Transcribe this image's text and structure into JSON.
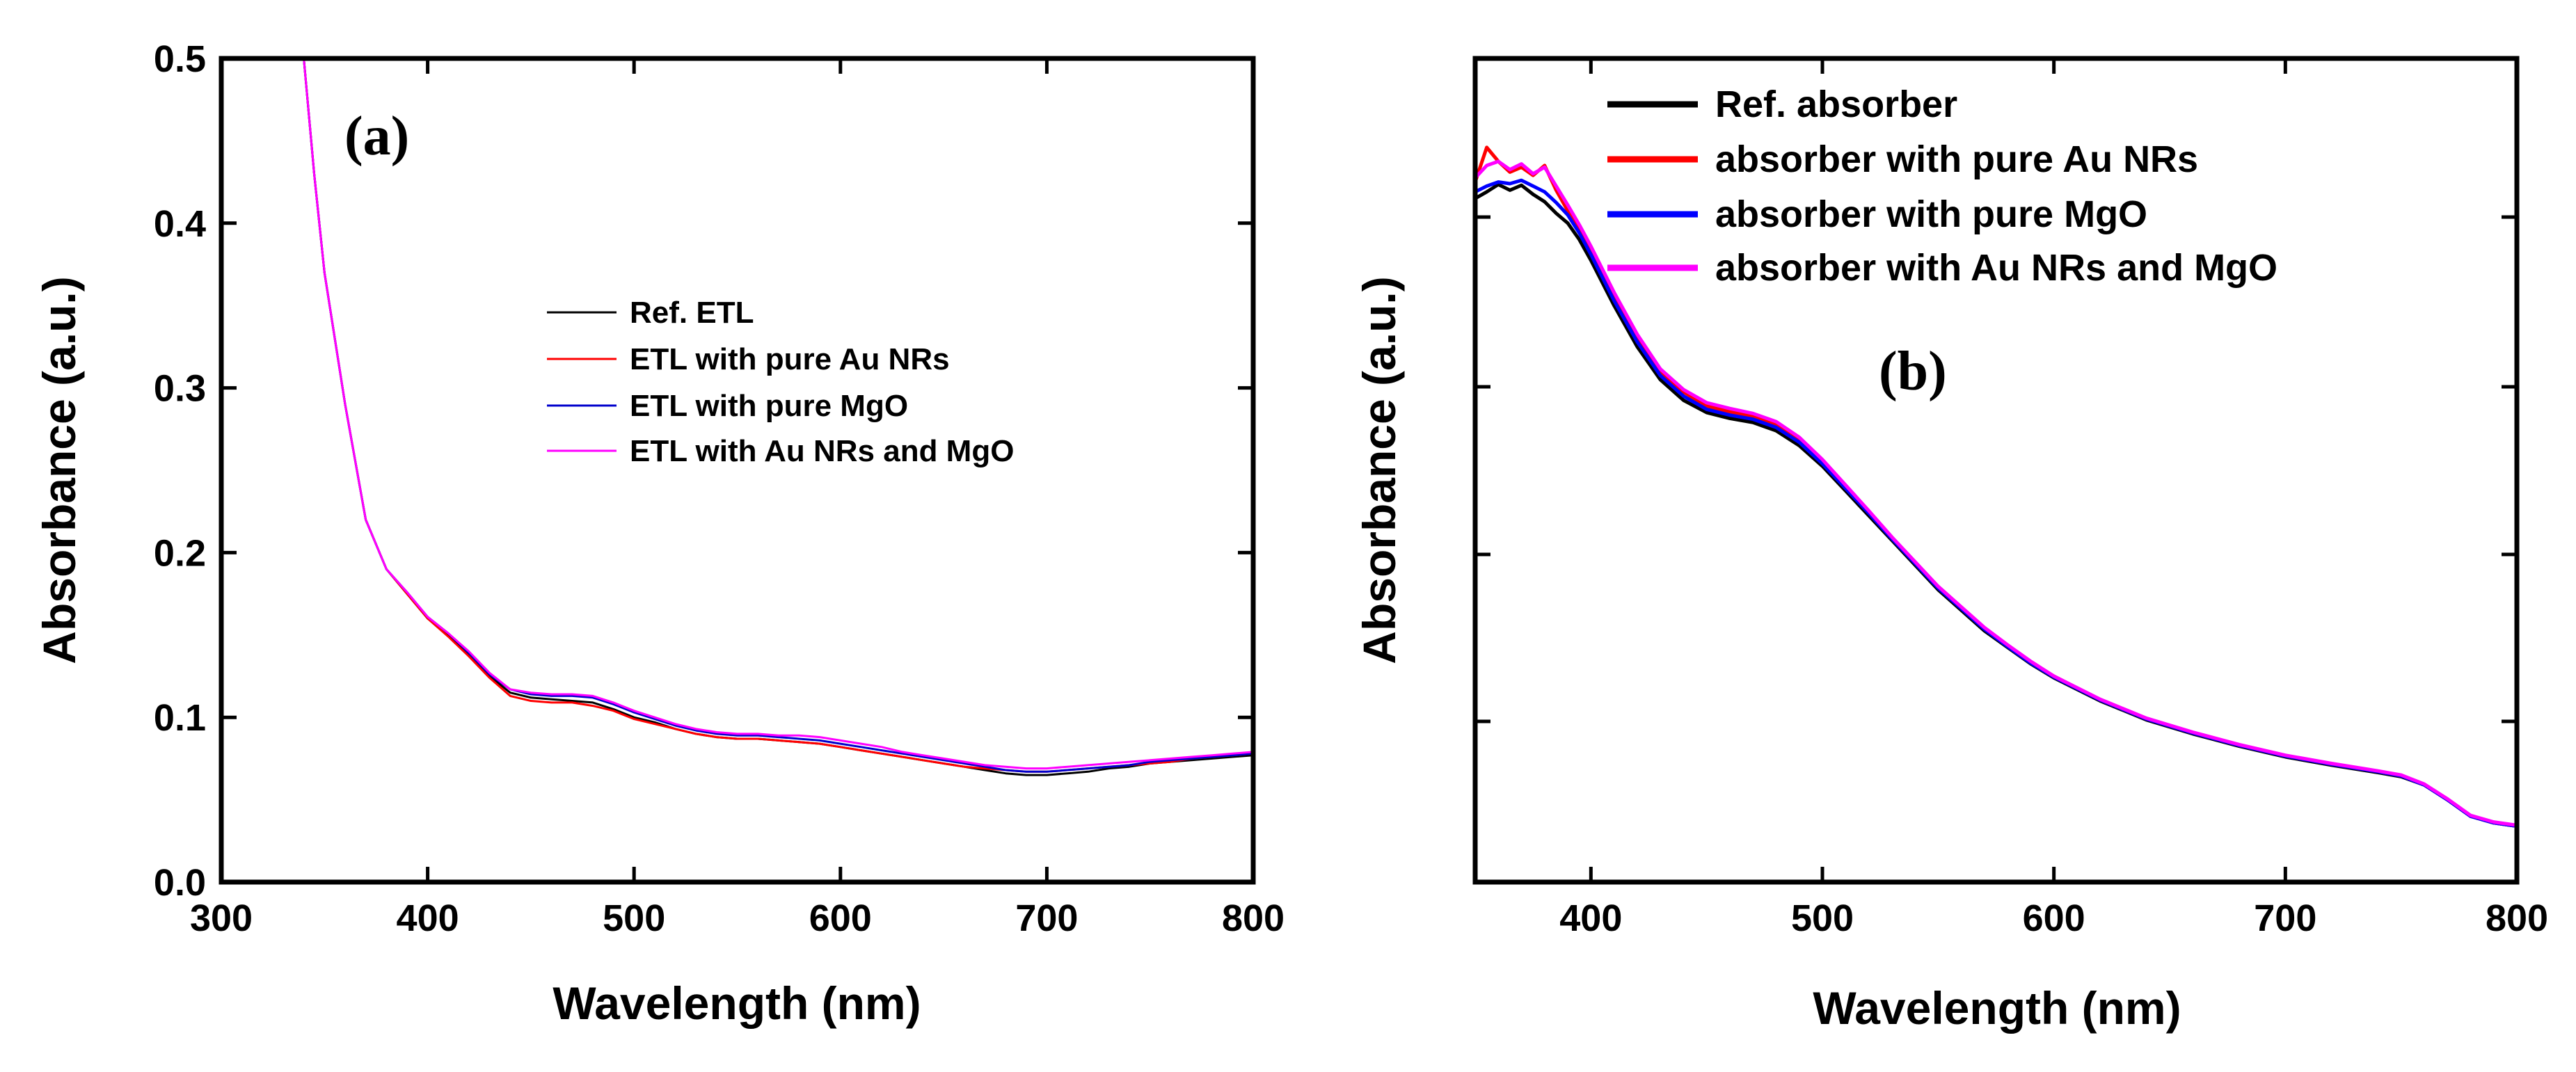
{
  "chart_data": [
    {
      "panel": "(a)",
      "type": "line",
      "xlabel": "Wavelength (nm)",
      "ylabel": "Absorbance (a.u.)",
      "xlim": [
        300,
        800
      ],
      "ylim": [
        0.0,
        0.5
      ],
      "xticks": [
        "300",
        "400",
        "500",
        "600",
        "700",
        "800"
      ],
      "yticks": [
        "0.0",
        "0.1",
        "0.2",
        "0.3",
        "0.4",
        "0.5"
      ],
      "legend": "center-right",
      "x": [
        340,
        345,
        350,
        360,
        370,
        380,
        390,
        400,
        410,
        420,
        430,
        440,
        450,
        460,
        470,
        480,
        490,
        500,
        510,
        520,
        530,
        540,
        550,
        560,
        570,
        580,
        590,
        600,
        610,
        620,
        630,
        640,
        650,
        660,
        670,
        680,
        690,
        700,
        710,
        720,
        730,
        740,
        750,
        760,
        770,
        780,
        790,
        800
      ],
      "series": [
        {
          "name": "Ref. ETL",
          "color": "#000000",
          "values": [
            0.5,
            0.43,
            0.37,
            0.29,
            0.22,
            0.19,
            0.175,
            0.16,
            0.15,
            0.138,
            0.125,
            0.115,
            0.112,
            0.111,
            0.11,
            0.109,
            0.105,
            0.1,
            0.097,
            0.093,
            0.09,
            0.088,
            0.087,
            0.087,
            0.086,
            0.085,
            0.084,
            0.082,
            0.08,
            0.078,
            0.076,
            0.074,
            0.072,
            0.07,
            0.068,
            0.066,
            0.065,
            0.065,
            0.066,
            0.067,
            0.069,
            0.07,
            0.072,
            0.073,
            0.074,
            0.075,
            0.076,
            0.077
          ]
        },
        {
          "name": "ETL with pure Au NRs",
          "color": "#ff0000",
          "values": [
            0.5,
            0.43,
            0.37,
            0.29,
            0.22,
            0.19,
            0.175,
            0.16,
            0.149,
            0.137,
            0.124,
            0.113,
            0.11,
            0.109,
            0.109,
            0.107,
            0.104,
            0.099,
            0.096,
            0.093,
            0.09,
            0.088,
            0.087,
            0.087,
            0.086,
            0.085,
            0.084,
            0.082,
            0.08,
            0.078,
            0.076,
            0.074,
            0.072,
            0.07,
            0.069,
            0.068,
            0.067,
            0.067,
            0.068,
            0.069,
            0.07,
            0.071,
            0.072,
            0.073,
            0.075,
            0.076,
            0.077,
            0.078
          ]
        },
        {
          "name": "ETL with pure MgO",
          "color": "#0000cc",
          "values": [
            0.5,
            0.43,
            0.37,
            0.29,
            0.22,
            0.19,
            0.176,
            0.161,
            0.151,
            0.139,
            0.126,
            0.117,
            0.114,
            0.113,
            0.113,
            0.112,
            0.108,
            0.103,
            0.099,
            0.095,
            0.092,
            0.09,
            0.089,
            0.089,
            0.088,
            0.087,
            0.086,
            0.084,
            0.082,
            0.08,
            0.078,
            0.076,
            0.074,
            0.072,
            0.07,
            0.068,
            0.067,
            0.067,
            0.068,
            0.069,
            0.07,
            0.071,
            0.073,
            0.074,
            0.075,
            0.076,
            0.077,
            0.078
          ]
        },
        {
          "name": "ETL with Au NRs and MgO",
          "color": "#ff00ff",
          "values": [
            0.5,
            0.43,
            0.37,
            0.29,
            0.22,
            0.19,
            0.176,
            0.161,
            0.151,
            0.14,
            0.127,
            0.117,
            0.115,
            0.114,
            0.114,
            0.113,
            0.109,
            0.104,
            0.1,
            0.096,
            0.093,
            0.091,
            0.09,
            0.09,
            0.089,
            0.089,
            0.088,
            0.086,
            0.084,
            0.082,
            0.079,
            0.077,
            0.075,
            0.073,
            0.071,
            0.07,
            0.069,
            0.069,
            0.07,
            0.071,
            0.072,
            0.073,
            0.074,
            0.075,
            0.076,
            0.077,
            0.078,
            0.079
          ]
        }
      ]
    },
    {
      "panel": "(b)",
      "type": "line",
      "xlabel": "Wavelength (nm)",
      "ylabel": "Absorbance (a.u.)",
      "xlim": [
        350,
        800
      ],
      "ylim": [
        0.0,
        1.0
      ],
      "xticks": [
        "400",
        "500",
        "600",
        "700",
        "800"
      ],
      "yticks": [],
      "legend": "top-right",
      "x": [
        350,
        355,
        360,
        365,
        370,
        375,
        380,
        385,
        390,
        395,
        400,
        410,
        420,
        430,
        440,
        450,
        460,
        470,
        480,
        490,
        500,
        510,
        520,
        530,
        540,
        550,
        560,
        570,
        580,
        590,
        600,
        620,
        640,
        660,
        680,
        700,
        720,
        740,
        750,
        760,
        770,
        780,
        790,
        800
      ],
      "series": [
        {
          "name": "Ref. absorber",
          "color": "#000000",
          "values": [
            0.83,
            0.838,
            0.847,
            0.84,
            0.846,
            0.835,
            0.826,
            0.812,
            0.8,
            0.78,
            0.755,
            0.7,
            0.65,
            0.61,
            0.585,
            0.57,
            0.563,
            0.558,
            0.548,
            0.53,
            0.505,
            0.475,
            0.445,
            0.415,
            0.385,
            0.355,
            0.33,
            0.305,
            0.285,
            0.265,
            0.248,
            0.22,
            0.197,
            0.18,
            0.165,
            0.152,
            0.142,
            0.133,
            0.128,
            0.118,
            0.1,
            0.08,
            0.072,
            0.068
          ]
        },
        {
          "name": "absorber with pure Au NRs",
          "color": "#ff0000",
          "values": [
            0.85,
            0.892,
            0.875,
            0.862,
            0.868,
            0.858,
            0.87,
            0.84,
            0.815,
            0.792,
            0.768,
            0.712,
            0.662,
            0.62,
            0.595,
            0.578,
            0.571,
            0.565,
            0.555,
            0.537,
            0.511,
            0.48,
            0.45,
            0.418,
            0.388,
            0.358,
            0.333,
            0.308,
            0.287,
            0.267,
            0.25,
            0.221,
            0.198,
            0.181,
            0.166,
            0.153,
            0.143,
            0.134,
            0.129,
            0.118,
            0.1,
            0.08,
            0.072,
            0.068
          ]
        },
        {
          "name": "absorber with pure MgO",
          "color": "#0000ff",
          "values": [
            0.838,
            0.845,
            0.85,
            0.848,
            0.852,
            0.845,
            0.838,
            0.825,
            0.81,
            0.788,
            0.762,
            0.706,
            0.656,
            0.615,
            0.59,
            0.574,
            0.567,
            0.562,
            0.552,
            0.534,
            0.508,
            0.478,
            0.448,
            0.417,
            0.387,
            0.357,
            0.332,
            0.307,
            0.286,
            0.266,
            0.249,
            0.221,
            0.198,
            0.181,
            0.166,
            0.153,
            0.143,
            0.134,
            0.129,
            0.118,
            0.1,
            0.08,
            0.072,
            0.068
          ]
        },
        {
          "name": "absorber with Au NRs and MgO",
          "color": "#ff00ff",
          "values": [
            0.855,
            0.87,
            0.875,
            0.865,
            0.872,
            0.86,
            0.868,
            0.845,
            0.822,
            0.798,
            0.772,
            0.716,
            0.665,
            0.623,
            0.598,
            0.582,
            0.575,
            0.569,
            0.559,
            0.54,
            0.513,
            0.482,
            0.451,
            0.419,
            0.389,
            0.359,
            0.334,
            0.309,
            0.288,
            0.268,
            0.25,
            0.222,
            0.199,
            0.182,
            0.167,
            0.154,
            0.144,
            0.135,
            0.13,
            0.119,
            0.101,
            0.081,
            0.073,
            0.069
          ]
        }
      ]
    }
  ]
}
